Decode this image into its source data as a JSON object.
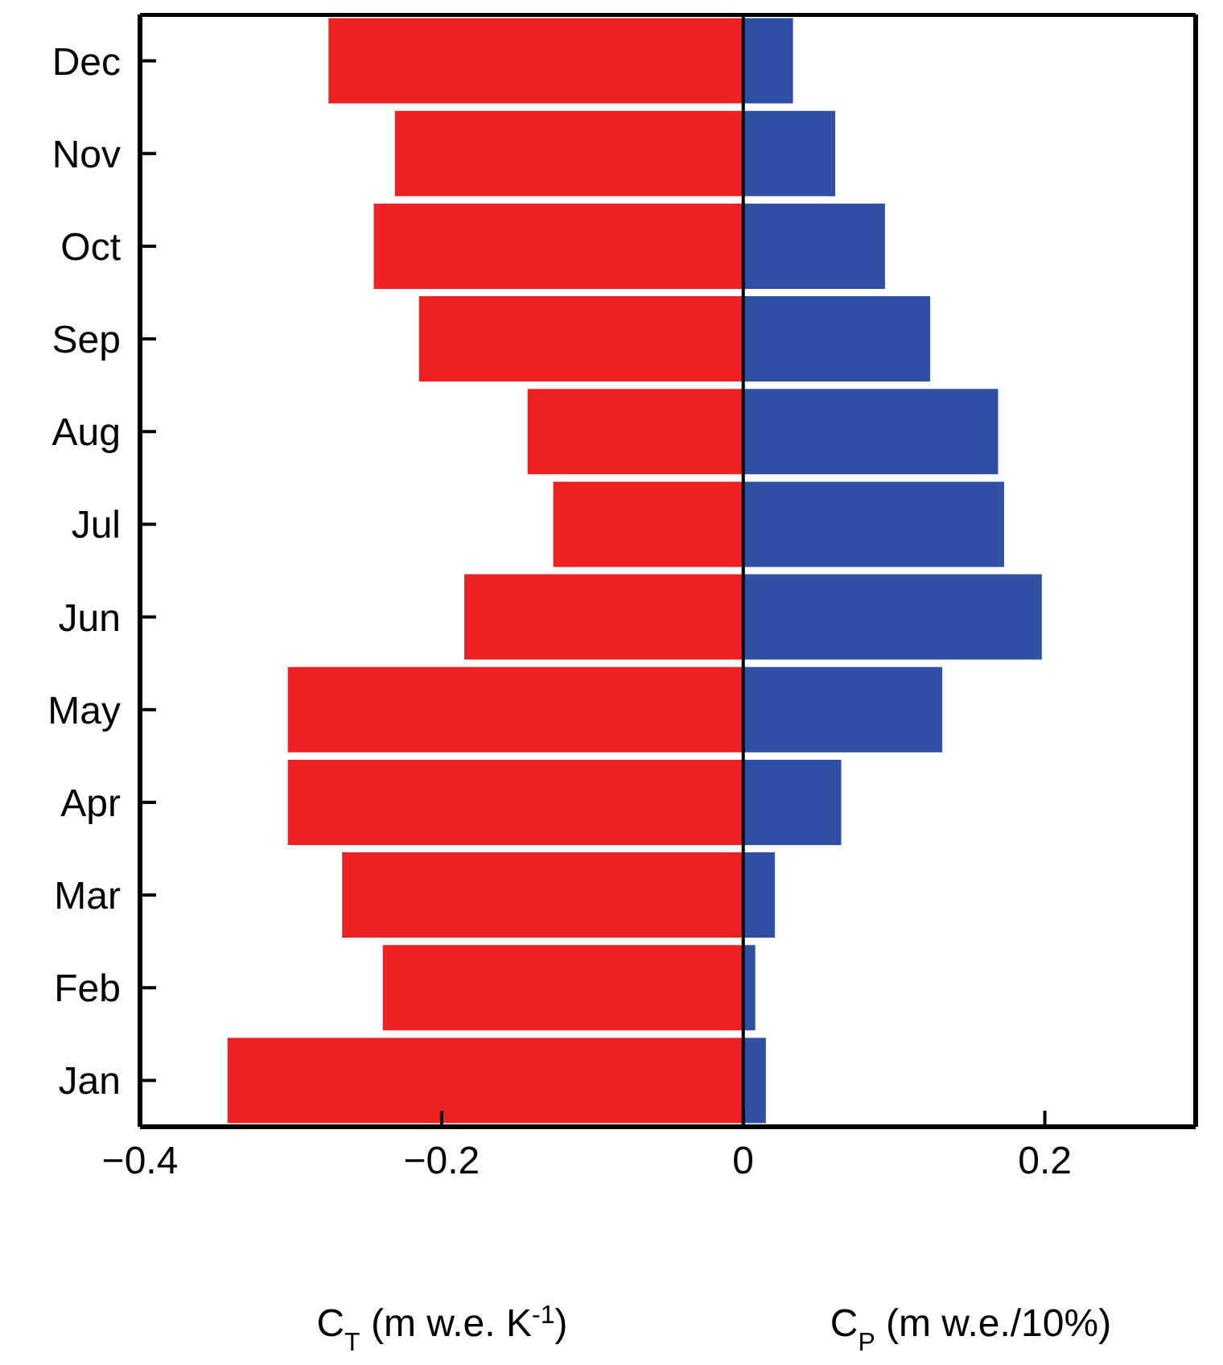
{
  "chart_data": {
    "type": "bar",
    "orientation": "horizontal",
    "stacked": true,
    "categories": [
      "Dec",
      "Nov",
      "Oct",
      "Sep",
      "Aug",
      "Jul",
      "Jun",
      "May",
      "Apr",
      "Mar",
      "Feb",
      "Jan"
    ],
    "series": [
      {
        "color": "#ee2224",
        "values": [
          -0.275,
          -0.231,
          -0.245,
          -0.215,
          -0.143,
          -0.126,
          -0.185,
          -0.302,
          -0.302,
          -0.266,
          -0.239,
          -0.342
        ]
      },
      {
        "color": "#3150a3",
        "values": [
          0.033,
          0.061,
          0.094,
          0.124,
          0.169,
          0.173,
          0.198,
          0.132,
          0.065,
          0.021,
          0.008,
          0.015
        ]
      }
    ],
    "xlim": [
      -0.4,
      0.3
    ],
    "xticks": [
      {
        "value": -0.4,
        "label": "−0.4"
      },
      {
        "value": -0.2,
        "label": "−0.2"
      },
      0,
      0.2
    ],
    "xlabel": "C$_{T}$ (m w.e. K$^{-1}$)",
    "annotations": [
      "C$_{P}$ (m w.e./10%)"
    ],
    "ref_lines": [
      {
        "axis": "x",
        "value": 0,
        "color": "#000000"
      }
    ],
    "grid": false,
    "legend": false
  }
}
